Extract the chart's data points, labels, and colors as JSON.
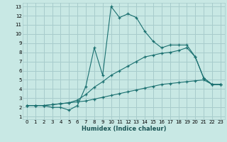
{
  "xlabel": "Humidex (Indice chaleur)",
  "background_color": "#c8e8e4",
  "grid_color": "#a8cccc",
  "line_color": "#1a7070",
  "xlim_min": -0.5,
  "xlim_max": 23.5,
  "ylim_min": 0.7,
  "ylim_max": 13.4,
  "xticks": [
    0,
    1,
    2,
    3,
    4,
    5,
    6,
    7,
    8,
    9,
    10,
    11,
    12,
    13,
    14,
    15,
    16,
    17,
    18,
    19,
    20,
    21,
    22,
    23
  ],
  "yticks": [
    1,
    2,
    3,
    4,
    5,
    6,
    7,
    8,
    9,
    10,
    11,
    12,
    13
  ],
  "s1_x": [
    0,
    1,
    2,
    3,
    4,
    5,
    6,
    7,
    8,
    9,
    10,
    11,
    12,
    13,
    14,
    15,
    16,
    17,
    18,
    19,
    20,
    21,
    22,
    23
  ],
  "s1_y": [
    2.2,
    2.2,
    2.2,
    2.3,
    2.4,
    2.5,
    2.6,
    2.7,
    2.9,
    3.1,
    3.3,
    3.5,
    3.7,
    3.9,
    4.1,
    4.3,
    4.5,
    4.6,
    4.7,
    4.8,
    4.9,
    5.0,
    4.5,
    4.5
  ],
  "s2_x": [
    0,
    1,
    2,
    3,
    4,
    5,
    6,
    7,
    8,
    9,
    10,
    11,
    12,
    13,
    14,
    15,
    16,
    17,
    18,
    19,
    20,
    21,
    22,
    23
  ],
  "s2_y": [
    2.2,
    2.2,
    2.2,
    2.3,
    2.4,
    2.5,
    2.8,
    3.4,
    4.2,
    4.8,
    5.5,
    6.0,
    6.5,
    7.0,
    7.5,
    7.7,
    7.9,
    8.0,
    8.2,
    8.5,
    7.5,
    5.2,
    4.5,
    4.5
  ],
  "s3_x": [
    0,
    1,
    2,
    3,
    4,
    5,
    6,
    7,
    8,
    9,
    10,
    11,
    12,
    13,
    14,
    15,
    16,
    17,
    18,
    19,
    20,
    21,
    22,
    23
  ],
  "s3_y": [
    2.2,
    2.2,
    2.2,
    2.0,
    2.0,
    1.7,
    2.2,
    4.3,
    8.5,
    5.5,
    13.0,
    11.8,
    12.2,
    11.8,
    10.3,
    9.2,
    8.5,
    8.8,
    8.8,
    8.8,
    7.5,
    5.2,
    4.5,
    4.5
  ]
}
